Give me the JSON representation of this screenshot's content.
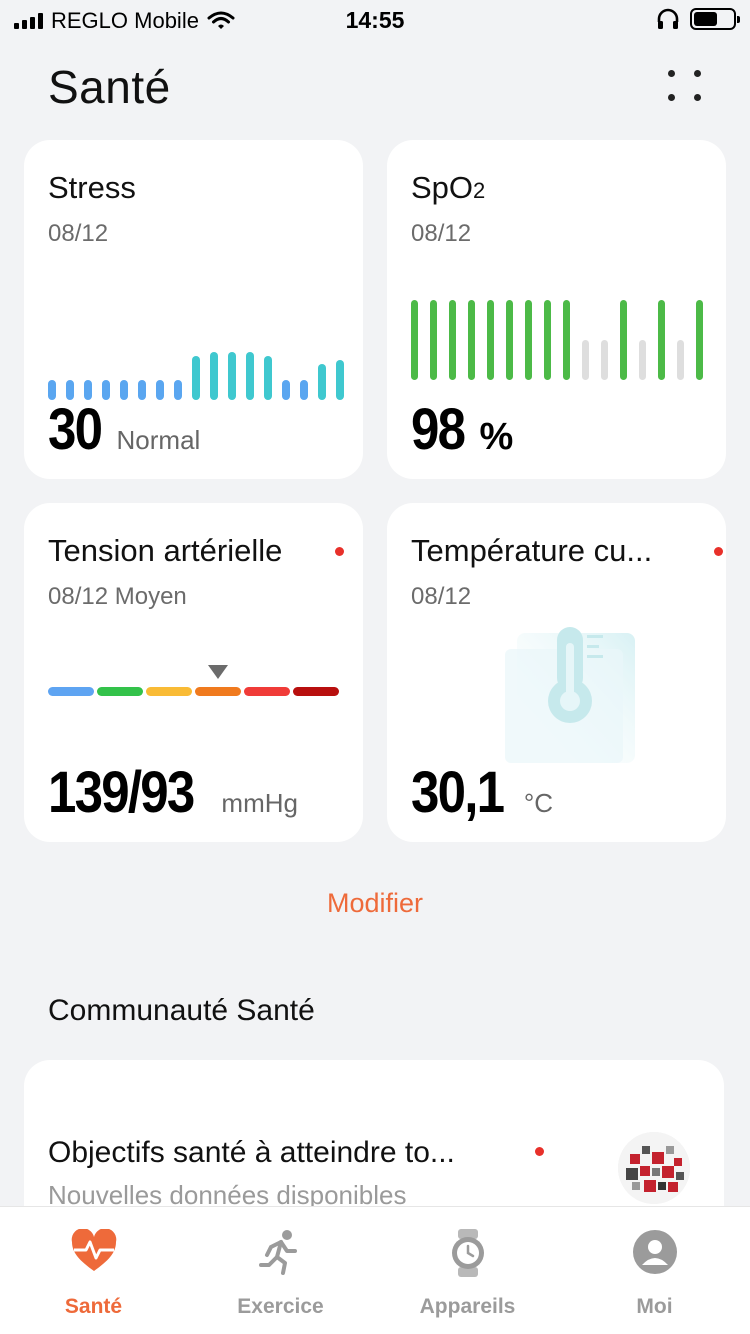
{
  "status_bar": {
    "carrier": "REGLO Mobile",
    "time": "14:55",
    "battery_level": 0.6
  },
  "header": {
    "title": "Santé"
  },
  "cards": {
    "stress": {
      "title": "Stress",
      "date": "08/12",
      "value": "30",
      "unit": "Normal",
      "bar_levels": [
        0.25,
        0.25,
        0.25,
        0.25,
        0.25,
        0.25,
        0.25,
        0.25,
        0.55,
        0.6,
        0.6,
        0.6,
        0.55,
        0.25,
        0.25,
        0.45,
        0.5
      ],
      "colors": {
        "low": "#5aa6f0",
        "mid": "#3fc8cf"
      }
    },
    "spo2": {
      "title": "SpO",
      "title_sub": "2",
      "date": "08/12",
      "value": "98",
      "unit": "%",
      "bar_levels": [
        1,
        1,
        1,
        1,
        1,
        1,
        1,
        1,
        1,
        0.5,
        0.5,
        1,
        0.5,
        1,
        0.5,
        1
      ],
      "bar_active": [
        true,
        true,
        true,
        true,
        true,
        true,
        true,
        true,
        true,
        false,
        false,
        true,
        false,
        true,
        false,
        true
      ],
      "colors": {
        "active": "#4cba47",
        "inactive": "#dedede"
      }
    },
    "bp": {
      "title": "Tension artérielle",
      "date": "08/12 Moyen",
      "value": "139/93",
      "unit": "mmHg",
      "scale_colors": [
        "#5ea4f2",
        "#33c24a",
        "#f9bb35",
        "#f07a1e",
        "#f03b38",
        "#b80f0e"
      ],
      "marker_segment": 3
    },
    "temp": {
      "title": "Température cu...",
      "date": "08/12",
      "value": "30,1",
      "unit": "°C",
      "icon": "thermometer-icon"
    }
  },
  "modifier_label": "Modifier",
  "community": {
    "section_title": "Communauté Santé",
    "card_title": "Objectifs santé à atteindre to...",
    "card_subtitle": "Nouvelles données disponibles"
  },
  "tabbar": {
    "tabs": [
      {
        "label": "Santé",
        "icon": "heart-pulse-icon",
        "active": true
      },
      {
        "label": "Exercice",
        "icon": "running-icon",
        "active": false
      },
      {
        "label": "Appareils",
        "icon": "watch-icon",
        "active": false
      },
      {
        "label": "Moi",
        "icon": "profile-icon",
        "active": false
      }
    ]
  },
  "accent_color": "#ee6a3a"
}
